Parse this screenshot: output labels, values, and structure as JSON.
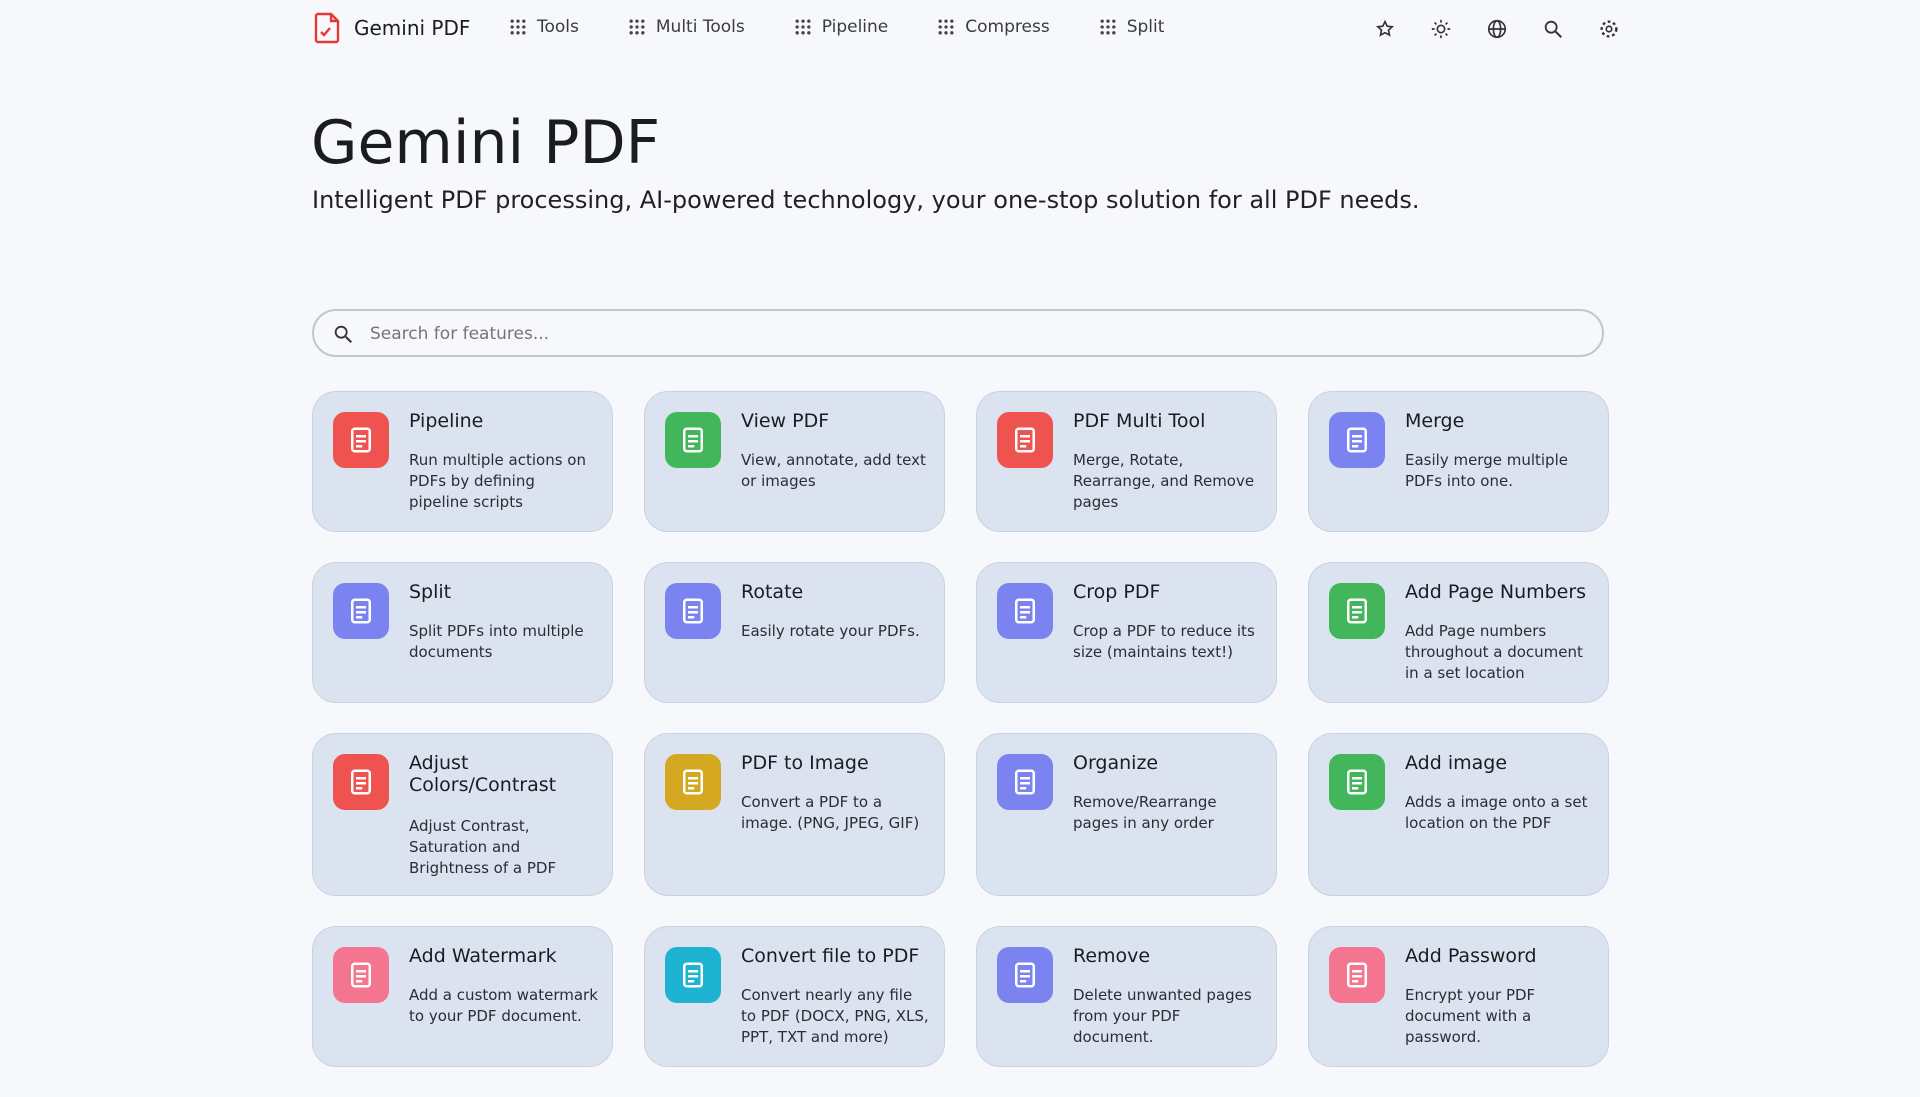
{
  "header": {
    "brand": "Gemini PDF",
    "nav": [
      "Tools",
      "Multi Tools",
      "Pipeline",
      "Compress",
      "Split"
    ]
  },
  "hero": {
    "title": "Gemini PDF",
    "subtitle": "Intelligent PDF processing, AI-powered technology, your one-stop solution for all PDF needs."
  },
  "search": {
    "placeholder": "Search for features..."
  },
  "cards": [
    {
      "title": "Pipeline",
      "description": "Run multiple actions on PDFs by defining pipeline scripts",
      "color": "#ef5350"
    },
    {
      "title": "View PDF",
      "description": "View, annotate, add text or images",
      "color": "#43b55a"
    },
    {
      "title": "PDF Multi Tool",
      "description": "Merge, Rotate, Rearrange, and Remove pages",
      "color": "#ef5350"
    },
    {
      "title": "Merge",
      "description": "Easily merge multiple PDFs into one.",
      "color": "#7b83f0"
    },
    {
      "title": "Split",
      "description": "Split PDFs into multiple documents",
      "color": "#7b83f0"
    },
    {
      "title": "Rotate",
      "description": "Easily rotate your PDFs.",
      "color": "#7b83f0"
    },
    {
      "title": "Crop PDF",
      "description": "Crop a PDF to reduce its size (maintains text!)",
      "color": "#7b83f0"
    },
    {
      "title": "Add Page Numbers",
      "description": "Add Page numbers throughout a document in a set location",
      "color": "#43b55a"
    },
    {
      "title": "Adjust Colors/Contrast",
      "description": "Adjust Contrast, Saturation and Brightness of a PDF",
      "color": "#ef5350"
    },
    {
      "title": "PDF to Image",
      "description": "Convert a PDF to a image. (PNG, JPEG, GIF)",
      "color": "#d4a820"
    },
    {
      "title": "Organize",
      "description": "Remove/Rearrange pages in any order",
      "color": "#7b83f0"
    },
    {
      "title": "Add image",
      "description": "Adds a image onto a set location on the PDF",
      "color": "#43b55a"
    },
    {
      "title": "Add Watermark",
      "description": "Add a custom watermark to your PDF document.",
      "color": "#f3758f"
    },
    {
      "title": "Convert file to PDF",
      "description": "Convert nearly any file to PDF (DOCX, PNG, XLS, PPT, TXT and more)",
      "color": "#1fb3d2"
    },
    {
      "title": "Remove",
      "description": "Delete unwanted pages from your PDF document.",
      "color": "#7b83f0"
    },
    {
      "title": "Add Password",
      "description": "Encrypt your PDF document with a password.",
      "color": "#f3758f"
    }
  ]
}
